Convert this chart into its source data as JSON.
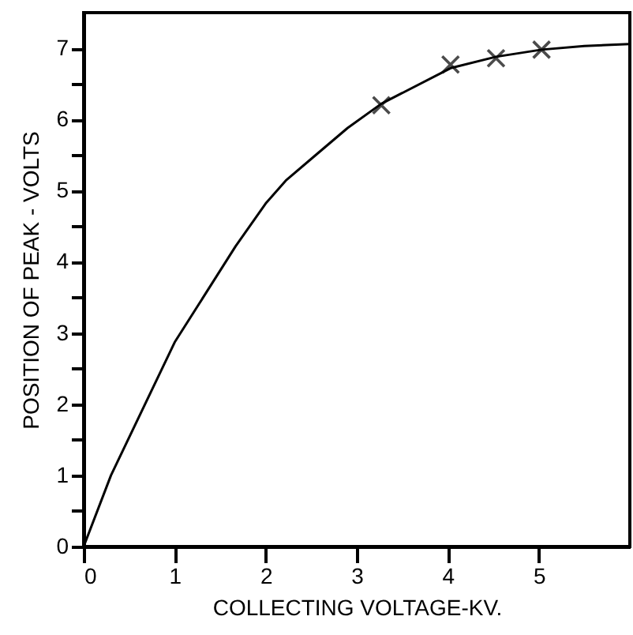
{
  "chart_data": {
    "type": "line",
    "xlabel": "COLLECTING VOLTAGE-KV.",
    "ylabel": "POSITION OF PEAK - VOLTS",
    "xlim": [
      0,
      6
    ],
    "xticks": [
      0,
      1,
      2,
      3,
      4,
      5
    ],
    "ylim": [
      0,
      7.5
    ],
    "yticks": [
      0,
      {
        "value": 0.5,
        "label": null
      },
      1,
      {
        "value": 1.5,
        "label": null
      },
      2,
      {
        "value": 2.5,
        "label": null
      },
      3,
      {
        "value": 3.5,
        "label": null
      },
      4,
      {
        "value": 4.5,
        "label": null
      },
      5,
      {
        "value": 5.5,
        "label": null
      },
      6,
      {
        "value": 6.5,
        "label": null
      },
      7
    ],
    "grid": false,
    "series": [
      {
        "type": "line",
        "color": "#000000",
        "marker": "none",
        "x": [
          0,
          0.3,
          1,
          1.67,
          2,
          2.22,
          2.55,
          2.9,
          3.27,
          4.03,
          4.53,
          5.03,
          5.5,
          6
        ],
        "values": [
          0,
          1.0,
          2.87,
          4.22,
          4.82,
          5.14,
          5.5,
          5.88,
          6.22,
          6.72,
          6.88,
          6.98,
          7.03,
          7.06
        ]
      },
      {
        "type": "scatter",
        "color": "#000000",
        "marker": "cross",
        "x": [
          3.27,
          4.03,
          4.53,
          5.03
        ],
        "values": [
          6.2,
          6.77,
          6.86,
          6.98
        ]
      }
    ]
  }
}
